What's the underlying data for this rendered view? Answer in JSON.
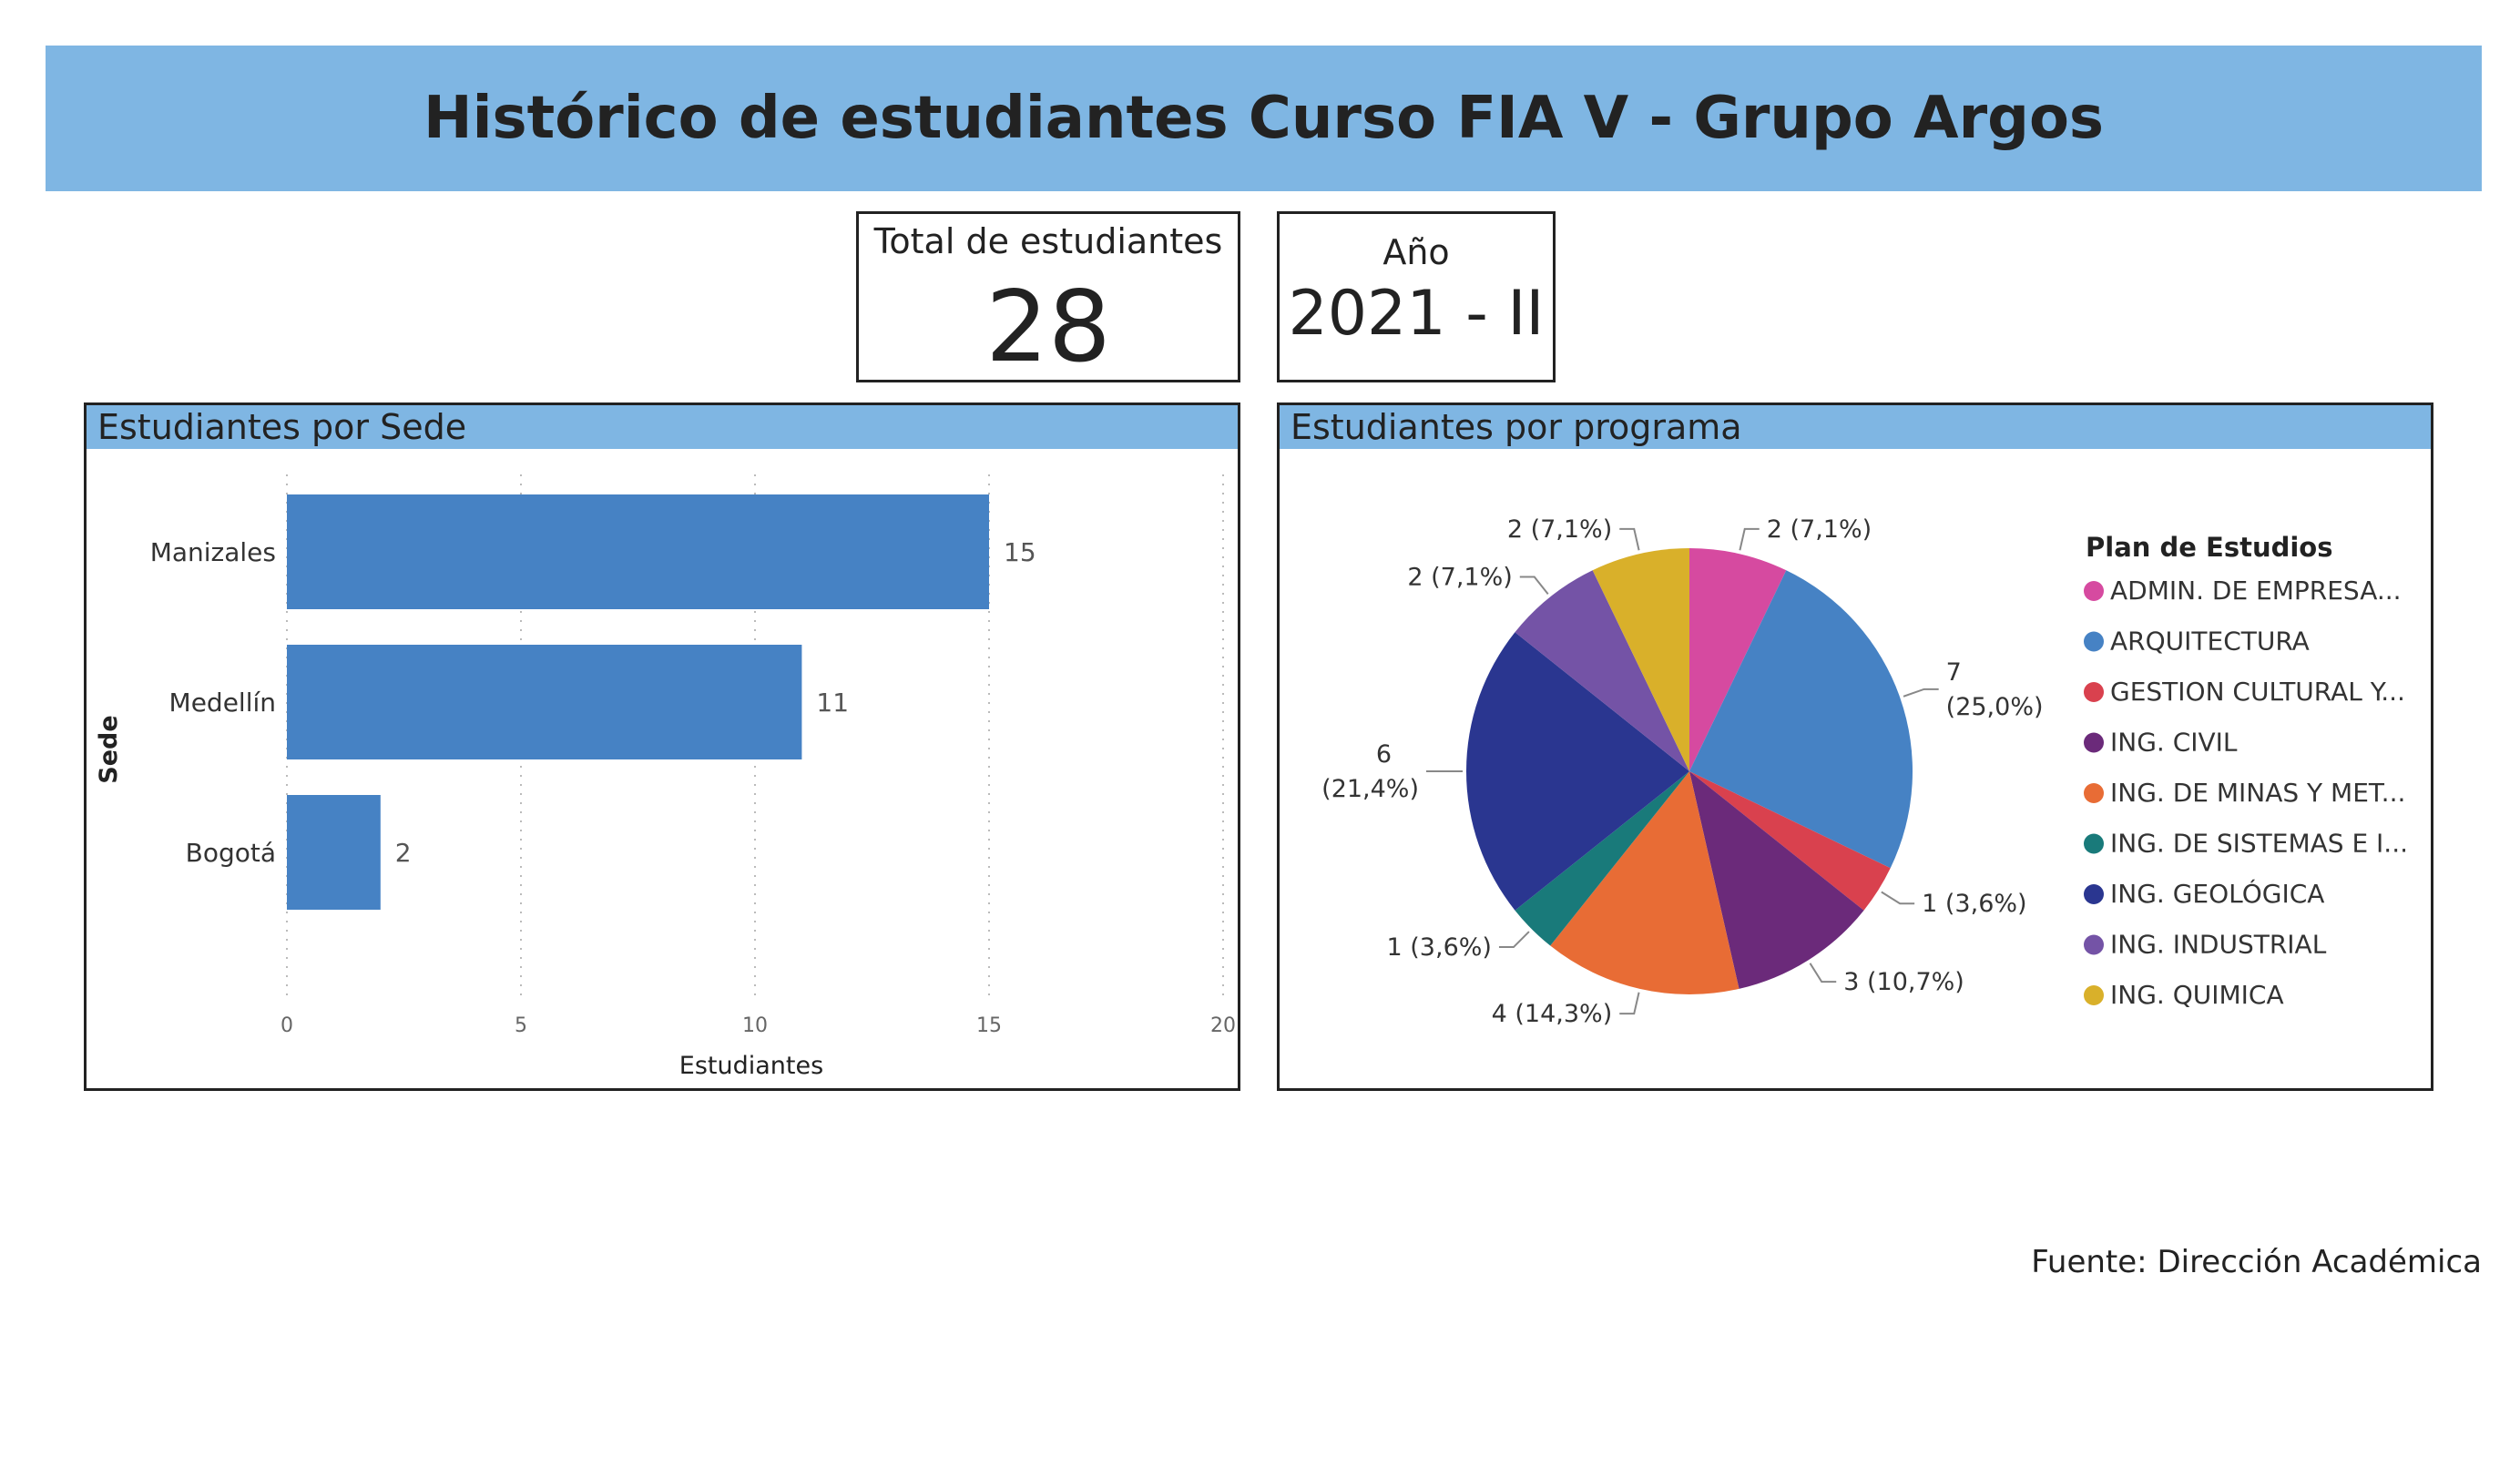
{
  "title": "Histórico de estudiantes Curso FIA V - Grupo Argos",
  "kpi_total": {
    "label": "Total de estudiantes",
    "value": "28"
  },
  "kpi_year": {
    "label": "Año",
    "value": "2021 - II"
  },
  "footer": {
    "source": "Fuente: Dirección Académica"
  },
  "chart_data": [
    {
      "type": "bar",
      "orientation": "horizontal",
      "title": "Estudiantes por Sede",
      "categories": [
        "Manizales",
        "Medellín",
        "Bogotá"
      ],
      "values": [
        15,
        11,
        2
      ],
      "xlabel": "Estudiantes",
      "ylabel": "Sede",
      "xlim": [
        0,
        20
      ],
      "ticks": [
        0,
        5,
        10,
        15,
        20
      ],
      "grid": true,
      "color": "#4682c4"
    },
    {
      "type": "pie",
      "title": "Estudiantes por programa",
      "legend_title": "Plan de Estudios",
      "legend_position": "right",
      "slices": [
        {
          "name": "ADMIN. DE EMPRESA...",
          "value": 2,
          "label": "2 (7,1%)",
          "color": "#d64aa0"
        },
        {
          "name": "ARQUITECTURA",
          "value": 7,
          "label": "7 (25,0%)",
          "color": "#4682c4"
        },
        {
          "name": "GESTION CULTURAL Y...",
          "value": 1,
          "label": "1 (3,6%)",
          "color": "#d9414e"
        },
        {
          "name": "ING. CIVIL",
          "value": 3,
          "label": "3 (10,7%)",
          "color": "#6b2a7a"
        },
        {
          "name": "ING. DE MINAS Y MET...",
          "value": 4,
          "label": "4 (14,3%)",
          "color": "#e86c35"
        },
        {
          "name": "ING. DE SISTEMAS E I...",
          "value": 1,
          "label": "1 (3,6%)",
          "color": "#197a7a"
        },
        {
          "name": "ING. GEOLÓGICA",
          "value": 6,
          "label": "6 (21,4%)",
          "color": "#2a3690"
        },
        {
          "name": "ING. INDUSTRIAL",
          "value": 2,
          "label": "2 (7,1%)",
          "color": "#7453a6"
        },
        {
          "name": "ING. QUIMICA",
          "value": 2,
          "label": "2 (7,1%)",
          "color": "#d9b02a"
        }
      ]
    }
  ]
}
